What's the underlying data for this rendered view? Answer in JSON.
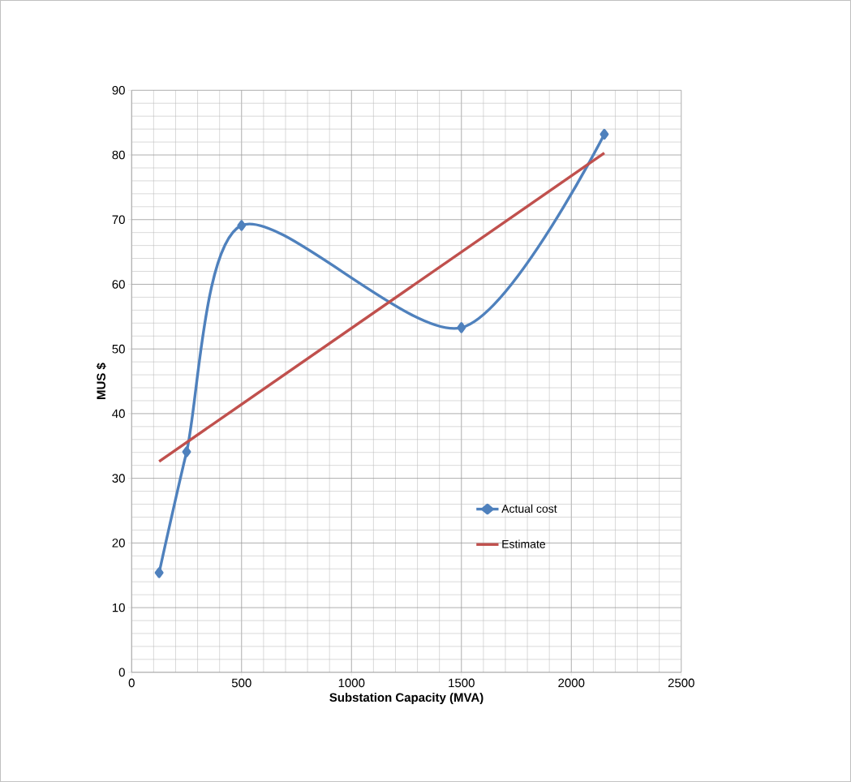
{
  "chart_data": {
    "type": "line",
    "xlabel": "Substation Capacity (MVA)",
    "ylabel": "MUS $",
    "xlim": [
      0,
      2500
    ],
    "ylim": [
      0,
      90
    ],
    "xticks": [
      0,
      500,
      1000,
      1500,
      2000,
      2500
    ],
    "yticks": [
      0,
      10,
      20,
      30,
      40,
      50,
      60,
      70,
      80,
      90
    ],
    "grid": true,
    "legend": "right",
    "series": [
      {
        "name": "Actual cost",
        "color": "#4f81bd",
        "marker": "diamond",
        "x": [
          125,
          250,
          500,
          1500,
          2150
        ],
        "values": [
          15.4,
          34.1,
          69.1,
          53.3,
          83.2
        ]
      },
      {
        "name": "Estimate",
        "color": "#c0504d",
        "marker": "none",
        "x": [
          125,
          2150
        ],
        "values": [
          32.6,
          80.3
        ]
      }
    ]
  }
}
